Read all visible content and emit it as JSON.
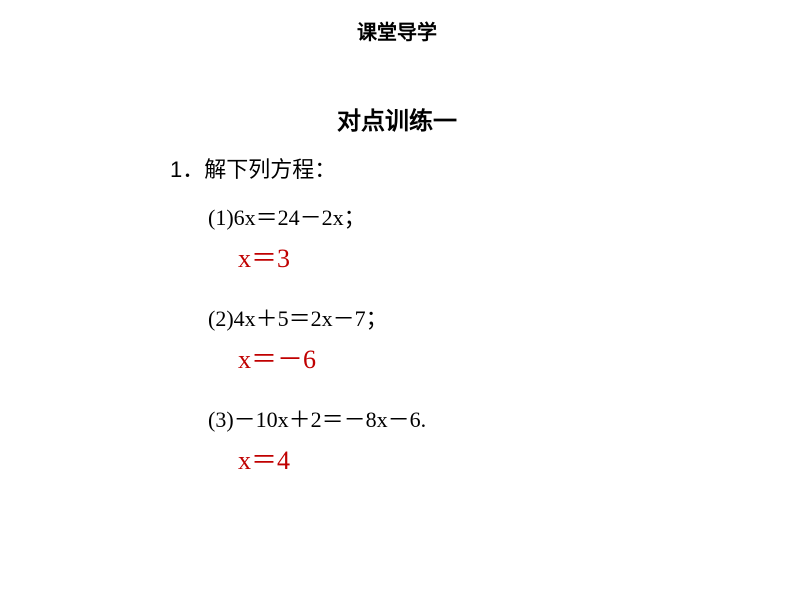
{
  "header": {
    "title": "课堂导学"
  },
  "subtitle": "对点训练一",
  "question": {
    "intro": "1．解下列方程：",
    "problems": [
      {
        "text": "(1)6x＝24－2x；",
        "answer": "x＝3"
      },
      {
        "text": "(2)4x＋5＝2x－7；",
        "answer": "x＝－6"
      },
      {
        "text": "(3)－10x＋2＝－8x－6.",
        "answer": "x＝4"
      }
    ]
  },
  "styles": {
    "background_color": "#ffffff",
    "text_color": "#000000",
    "answer_color": "#c00000",
    "header_fontsize": 20,
    "subtitle_fontsize": 24,
    "body_fontsize": 22,
    "answer_fontsize": 26
  }
}
